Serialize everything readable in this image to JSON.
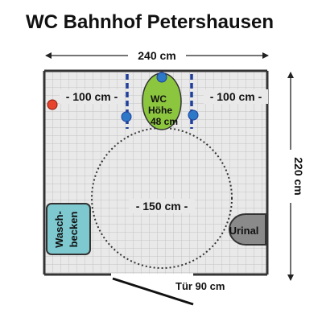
{
  "title": "WC Bahnhof Petershausen",
  "dimensions": {
    "width": "240 cm",
    "depth": "220 cm",
    "left_clearance": "- 100 cm -",
    "right_clearance": "- 100 cm -",
    "turning_circle": "- 150 cm -",
    "door": "Tür 90 cm"
  },
  "fixtures": {
    "wc": {
      "line1": "WC",
      "line2": "Höhe",
      "line3": "48 cm"
    },
    "sink": {
      "line1": "Wasch-",
      "line2": "becken"
    },
    "urinal": "Urinal"
  },
  "colors": {
    "floor_tile": "#e9e9e9",
    "grid_line": "#c2c2c2",
    "wall": "#333333",
    "wc_fill": "#8cc63f",
    "grab_bar": "#1f3f9a",
    "knob": "#2e78c8",
    "alarm": "#e8432d",
    "sink_fill": "#7ec8d0",
    "urinal_fill": "#8a8a8a"
  }
}
